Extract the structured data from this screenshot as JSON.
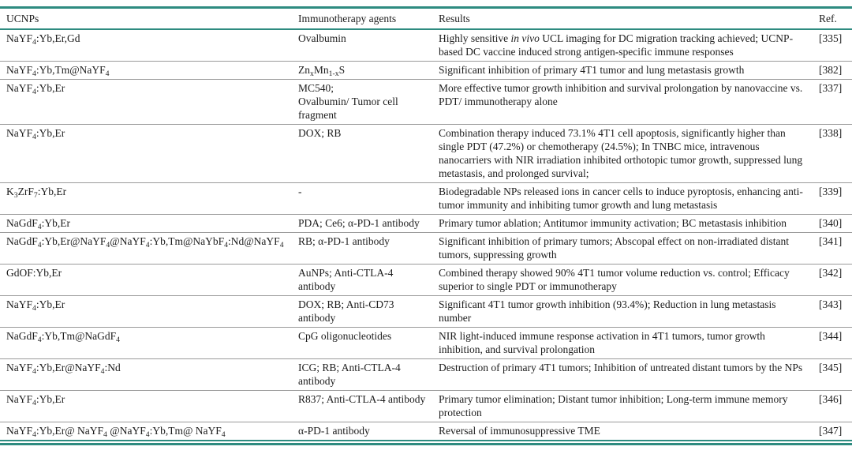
{
  "table": {
    "accent_color": "#2e8b80",
    "rule_color": "#9a9a9a",
    "columns": [
      {
        "label": "UCNPs"
      },
      {
        "label": "Immunotherapy agents"
      },
      {
        "label": "Results"
      },
      {
        "label": "Ref."
      }
    ],
    "rows": [
      {
        "ucnp": "NaYF_{4}:Yb,Er,Gd",
        "agents": "Ovalbumin",
        "results": "Highly sensitive *in vivo* UCL imaging for DC migration tracking achieved; UCNP-based DC vaccine induced strong antigen-specific immune responses",
        "ref": "[335]"
      },
      {
        "ucnp": "NaYF_{4}:Yb,Tm@NaYF_{4}",
        "agents": "Zn_{x}Mn_{1-x}S",
        "results": "Significant inhibition of primary 4T1 tumor and lung metastasis growth",
        "ref": "[382]"
      },
      {
        "ucnp": "NaYF_{4}:Yb,Er",
        "agents": "MC540;\nOvalbumin/ Tumor cell fragment",
        "results": "More effective tumor growth inhibition and survival prolongation by nanovaccine vs. PDT/ immunotherapy alone",
        "ref": "[337]"
      },
      {
        "ucnp": "NaYF_{4}:Yb,Er",
        "agents": "DOX; RB",
        "results": "Combination therapy induced 73.1% 4T1 cell apoptosis, significantly higher than single PDT (47.2%) or chemotherapy (24.5%); In TNBC mice, intravenous nanocarriers with NIR irradiation inhibited orthotopic tumor growth, suppressed lung metastasis, and prolonged survival;",
        "ref": "[338]"
      },
      {
        "ucnp": "K_{3}ZrF_{7}:Yb,Er",
        "agents": "-",
        "results": "Biodegradable NPs released ions in cancer cells to induce pyroptosis, enhancing anti-tumor immunity and inhibiting tumor growth and lung metastasis",
        "ref": "[339]"
      },
      {
        "ucnp": "NaGdF_{4}:Yb,Er",
        "agents": "PDA; Ce6; α-PD-1 antibody",
        "results": "Primary tumor ablation; Antitumor immunity activation; BC metastasis inhibition",
        "ref": "[340]"
      },
      {
        "ucnp": "NaGdF_{4}:Yb,Er@NaYF_{4}@NaYF_{4}:Yb,Tm@NaYbF_{4}:Nd@NaYF_{4}",
        "agents": "RB; α-PD-1 antibody",
        "results": "Significant inhibition of primary tumors; Abscopal effect on non-irradiated distant tumors, suppressing growth",
        "ref": "[341]"
      },
      {
        "ucnp": "GdOF:Yb,Er",
        "agents": "AuNPs; Anti-CTLA-4 antibody",
        "results": "Combined therapy showed 90% 4T1 tumor volume reduction vs. control; Efficacy superior to single PDT or immunotherapy",
        "ref": "[342]"
      },
      {
        "ucnp": "NaYF_{4}:Yb,Er",
        "agents": "DOX; RB; Anti-CD73 antibody",
        "results": "Significant 4T1 tumor growth inhibition (93.4%); Reduction in lung metastasis number",
        "ref": "[343]"
      },
      {
        "ucnp": "NaGdF_{4}:Yb,Tm@NaGdF_{4}",
        "agents": "CpG oligonucleotides",
        "results": "NIR light-induced immune response activation in 4T1 tumors, tumor growth inhibition, and survival prolongation",
        "ref": "[344]"
      },
      {
        "ucnp": "NaYF_{4}:Yb,Er@NaYF_{4}:Nd",
        "agents": "ICG; RB; Anti-CTLA-4 antibody",
        "results": "Destruction of primary 4T1 tumors; Inhibition of untreated distant tumors by the NPs",
        "ref": "[345]"
      },
      {
        "ucnp": "NaYF_{4}:Yb,Er",
        "agents": "R837; Anti-CTLA-4 antibody",
        "results": "Primary tumor elimination; Distant tumor inhibition; Long-term immune memory protection",
        "ref": "[346]"
      },
      {
        "ucnp": "NaYF_{4}:Yb,Er@ NaYF_{4} @NaYF_{4}:Yb,Tm@ NaYF_{4}",
        "agents": "α-PD-1 antibody",
        "results": "Reversal of immunosuppressive TME",
        "ref": "[347]"
      }
    ]
  }
}
